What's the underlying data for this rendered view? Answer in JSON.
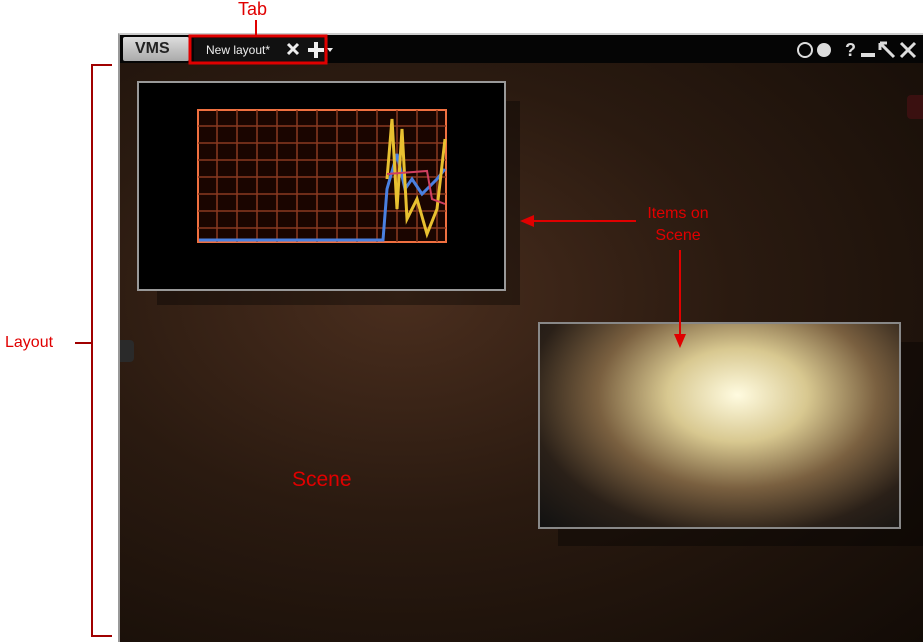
{
  "window": {
    "app_button": "VMS",
    "tab_title": "New layout*"
  },
  "annotations": {
    "tab": "Tab",
    "items_on_scene": [
      "Items on",
      "Scene"
    ],
    "layout": "Layout",
    "scene": "Scene"
  }
}
